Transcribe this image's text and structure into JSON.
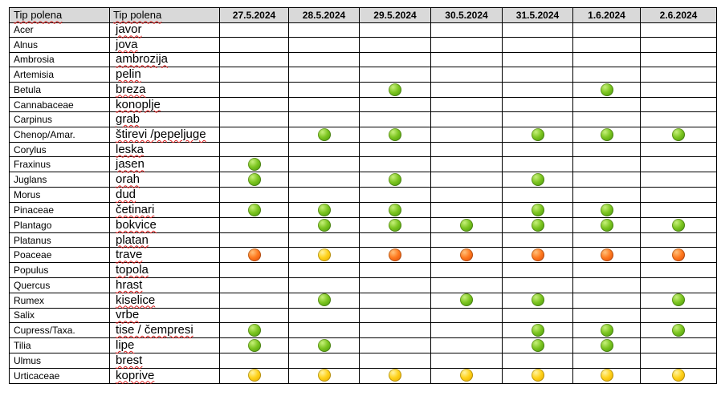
{
  "table": {
    "headers": {
      "latin": "Tip polena",
      "local": "Tip polena",
      "dates": [
        "27.5.2024",
        "28.5.2024",
        "29.5.2024",
        "30.5.2024",
        "31.5.2024",
        "1.6.2024",
        "2.6.2024"
      ]
    },
    "rows": [
      {
        "latin": "Acer",
        "local": "javor",
        "levels": [
          "",
          "",
          "",
          "",
          "",
          "",
          ""
        ]
      },
      {
        "latin": "Alnus",
        "local": "jova",
        "levels": [
          "",
          "",
          "",
          "",
          "",
          "",
          ""
        ]
      },
      {
        "latin": "Ambrosia",
        "local": "ambrozija",
        "levels": [
          "",
          "",
          "",
          "",
          "",
          "",
          ""
        ]
      },
      {
        "latin": "Artemisia",
        "local": "pelin",
        "levels": [
          "",
          "",
          "",
          "",
          "",
          "",
          ""
        ]
      },
      {
        "latin": "Betula",
        "local": "breza",
        "levels": [
          "",
          "",
          "green",
          "",
          "",
          "green",
          ""
        ]
      },
      {
        "latin": "Cannabaceae",
        "local": "konoplje",
        "levels": [
          "",
          "",
          "",
          "",
          "",
          "",
          ""
        ]
      },
      {
        "latin": "Carpinus",
        "local": "grab",
        "levels": [
          "",
          "",
          "",
          "",
          "",
          "",
          ""
        ]
      },
      {
        "latin": "Chenop/Amar.",
        "local": "štirevi /pepeljuge",
        "levels": [
          "",
          "green",
          "green",
          "",
          "green",
          "green",
          "green"
        ]
      },
      {
        "latin": "Corylus",
        "local": "leska",
        "levels": [
          "",
          "",
          "",
          "",
          "",
          "",
          ""
        ]
      },
      {
        "latin": "Fraxinus",
        "local": "jasen",
        "levels": [
          "green",
          "",
          "",
          "",
          "",
          "",
          ""
        ]
      },
      {
        "latin": "Juglans",
        "local": "orah",
        "levels": [
          "green",
          "",
          "green",
          "",
          "green",
          "",
          ""
        ]
      },
      {
        "latin": "Morus",
        "local": "dud",
        "levels": [
          "",
          "",
          "",
          "",
          "",
          "",
          ""
        ]
      },
      {
        "latin": "Pinaceae",
        "local": "četinari",
        "levels": [
          "green",
          "green",
          "green",
          "",
          "green",
          "green",
          ""
        ]
      },
      {
        "latin": "Plantago",
        "local": "bokvice",
        "levels": [
          "",
          "green",
          "green",
          "green",
          "green",
          "green",
          "green"
        ]
      },
      {
        "latin": "Platanus",
        "local": "platan",
        "levels": [
          "",
          "",
          "",
          "",
          "",
          "",
          ""
        ]
      },
      {
        "latin": "Poaceae",
        "local": "trave",
        "levels": [
          "orange",
          "yellow",
          "orange",
          "orange",
          "orange",
          "orange",
          "orange"
        ]
      },
      {
        "latin": "Populus",
        "local": "topola",
        "levels": [
          "",
          "",
          "",
          "",
          "",
          "",
          ""
        ]
      },
      {
        "latin": "Quercus",
        "local": "hrast",
        "levels": [
          "",
          "",
          "",
          "",
          "",
          "",
          ""
        ]
      },
      {
        "latin": "Rumex",
        "local": "kiselice",
        "levels": [
          "",
          "green",
          "",
          "green",
          "green",
          "",
          "green"
        ]
      },
      {
        "latin": "Salix",
        "local": "vrbe",
        "levels": [
          "",
          "",
          "",
          "",
          "",
          "",
          ""
        ]
      },
      {
        "latin": "Cupress/Taxa.",
        "local": "tise / čempresi",
        "levels": [
          "green",
          "",
          "",
          "",
          "green",
          "green",
          "green"
        ]
      },
      {
        "latin": "Tilia",
        "local": "lipe",
        "levels": [
          "green",
          "green",
          "",
          "",
          "green",
          "green",
          ""
        ]
      },
      {
        "latin": "Ulmus",
        "local": "brest",
        "levels": [
          "",
          "",
          "",
          "",
          "",
          "",
          ""
        ]
      },
      {
        "latin": "Urticaceae",
        "local": "koprive",
        "levels": [
          "yellow",
          "yellow",
          "yellow",
          "yellow",
          "yellow",
          "yellow",
          "yellow"
        ]
      }
    ]
  }
}
